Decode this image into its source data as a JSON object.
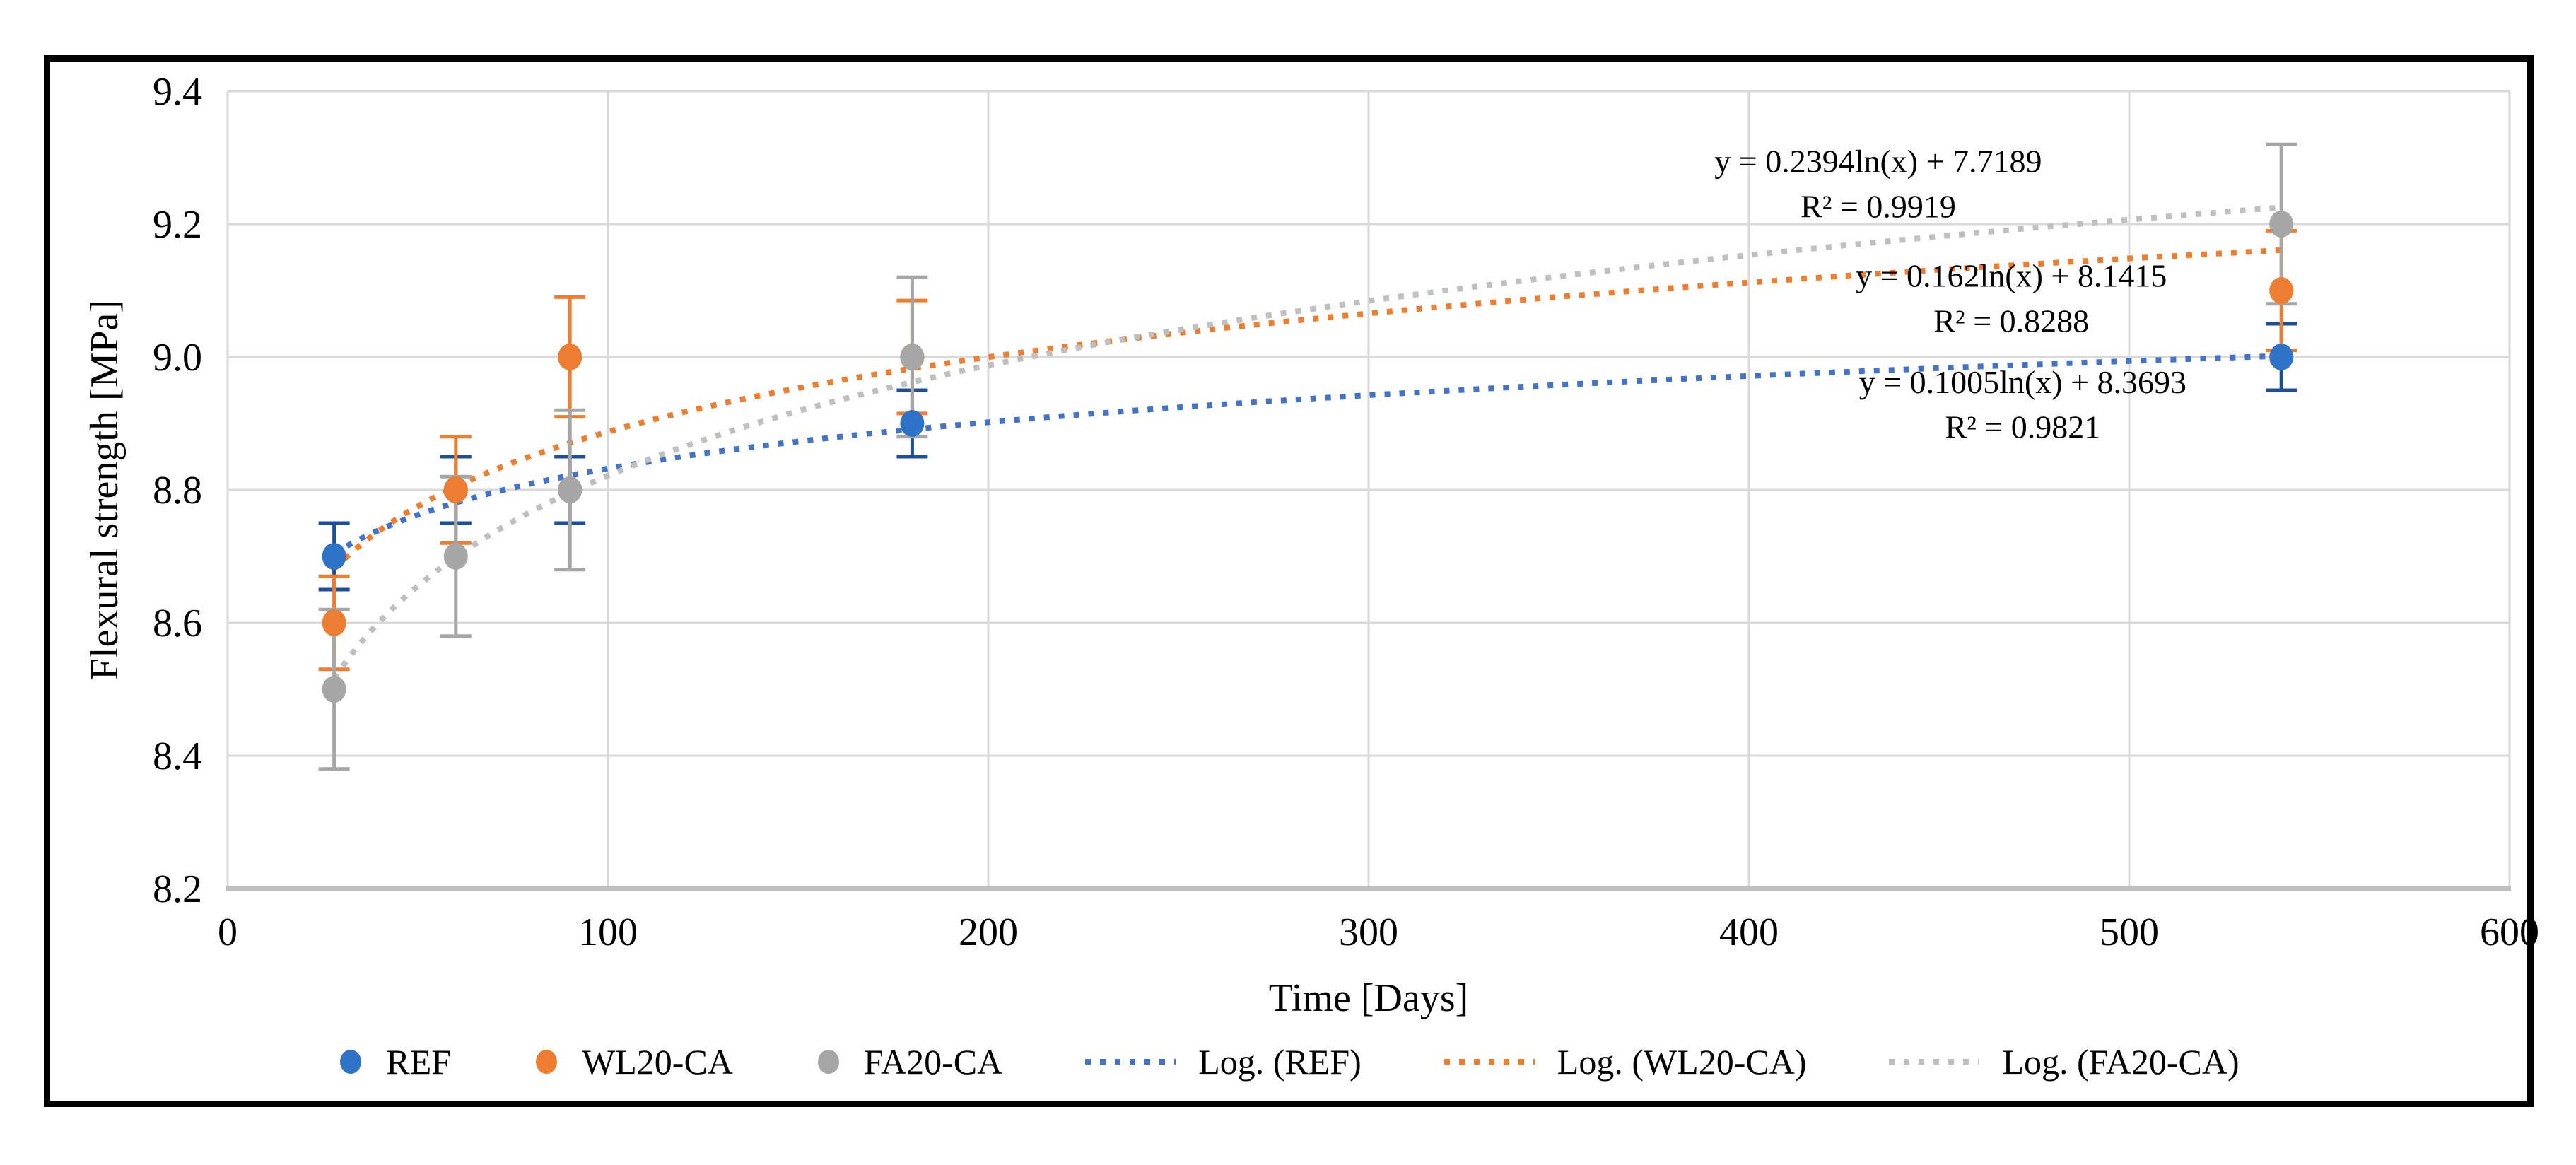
{
  "figure": {
    "background": "#FFFFFF",
    "border_color": "#000000"
  },
  "chart_data": {
    "type": "scatter",
    "title": "",
    "xlabel": "Time [Days]",
    "ylabel": "Flexural strength [MPa]",
    "xlim": [
      0,
      600
    ],
    "ylim": [
      8.2,
      9.4
    ],
    "x_ticks": [
      "0",
      "100",
      "200",
      "300",
      "400",
      "500",
      "600"
    ],
    "y_ticks": [
      "8.2",
      "8.4",
      "8.6",
      "8.8",
      "9.0",
      "9.2",
      "9.4"
    ],
    "grid": true,
    "legend_position": "bottom",
    "colors": {
      "gridline": "#D9D9D9",
      "axis_line": "#BFBFBF",
      "text": "#000000"
    },
    "x": [
      28,
      60,
      90,
      180,
      540
    ],
    "trend_x_range": [
      28,
      540
    ],
    "series": [
      {
        "name": "REF",
        "marker_color": "#2E73C5",
        "errorbar_color": "#1F4E99",
        "values": [
          8.7,
          8.8,
          8.8,
          8.9,
          9.0
        ],
        "errors": [
          0.05,
          0.05,
          0.05,
          0.05,
          0.05
        ],
        "trendline": {
          "label": "Log. (REF)",
          "type": "logarithmic",
          "a": 0.1005,
          "b": 8.3693,
          "color": "#4472C4",
          "equation": "y = 0.1005ln(x) + 8.3693",
          "r_squared": "R² = 0.9821",
          "annotation": {
            "x_days": 472,
            "eq_y_mpa": 8.946,
            "r2_y_mpa": 8.878
          }
        }
      },
      {
        "name": "WL20-CA",
        "marker_color": "#ED7D31",
        "errorbar_color": "#ED7D31",
        "values": [
          8.6,
          8.8,
          9.0,
          9.0,
          9.1
        ],
        "errors": [
          0.07,
          0.08,
          0.09,
          0.085,
          0.09
        ],
        "trendline": {
          "label": "Log. (WL20-CA)",
          "type": "logarithmic",
          "a": 0.162,
          "b": 8.1415,
          "color": "#ED7D31",
          "equation": "y = 0.162ln(x) + 8.1415",
          "r_squared": "R² = 0.8288",
          "annotation": {
            "x_days": 469,
            "eq_y_mpa": 9.106,
            "r2_y_mpa": 9.038
          }
        }
      },
      {
        "name": "FA20-CA",
        "marker_color": "#A6A6A6",
        "errorbar_color": "#A6A6A6",
        "values": [
          8.5,
          8.7,
          8.8,
          9.0,
          9.2
        ],
        "errors": [
          0.12,
          0.12,
          0.12,
          0.12,
          0.12
        ],
        "trendline": {
          "label": "Log. (FA20-CA)",
          "type": "logarithmic",
          "a": 0.2394,
          "b": 7.7189,
          "color": "#BFBFBF",
          "equation": "y = 0.2394ln(x) + 7.7189",
          "r_squared": "R² = 0.9919",
          "annotation": {
            "x_days": 434,
            "eq_y_mpa": 9.278,
            "r2_y_mpa": 9.21
          }
        }
      }
    ]
  }
}
